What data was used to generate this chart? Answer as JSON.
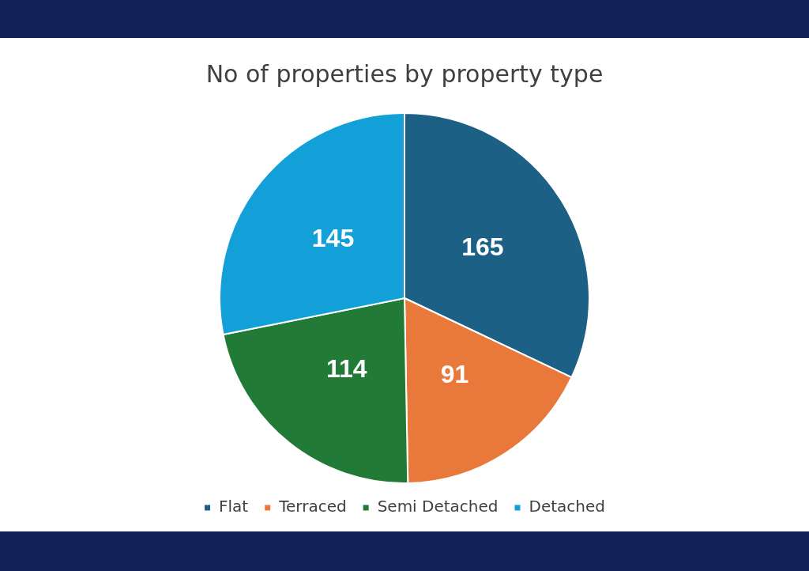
{
  "chart_data": {
    "type": "pie",
    "title": "No of properties by property type",
    "categories": [
      "Flat",
      "Terraced",
      "Semi Detached",
      "Detached"
    ],
    "values": [
      165,
      91,
      114,
      145
    ],
    "colors": [
      "#1c6185",
      "#e8793a",
      "#217a35",
      "#13a0d8"
    ],
    "data_labels": true,
    "legend": "bottom"
  }
}
